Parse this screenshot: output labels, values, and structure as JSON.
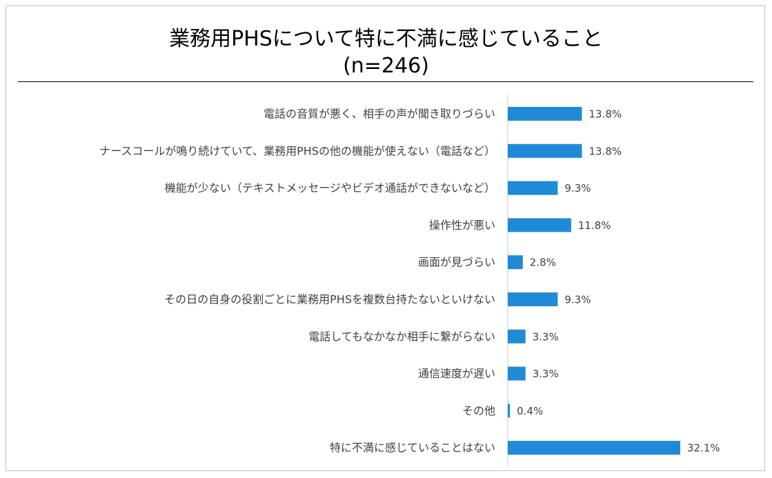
{
  "colors": {
    "bar": "#1f8bd6",
    "axis": "#c8c8c8",
    "text": "#404040"
  },
  "chart_data": {
    "type": "bar",
    "orientation": "horizontal",
    "title": "業務用PHSについて特に不満に感じていること",
    "subtitle": "(n=246)",
    "categories": [
      "電話の音質が悪く、相手の声が聞き取りづらい",
      "ナースコールが鳴り続けていて、業務用PHSの他の機能が使えない（電話など）",
      "機能が少ない（テキストメッセージやビデオ通話ができないなど）",
      "操作性が悪い",
      "画面が見づらい",
      "その日の自身の役割ごとに業務用PHSを複数台持たないといけない",
      "電話してもなかなか相手に繋がらない",
      "通信速度が遅い",
      "その他",
      "特に不満に感じていることはない"
    ],
    "values": [
      13.8,
      13.8,
      9.3,
      11.8,
      2.8,
      9.3,
      3.3,
      3.3,
      0.4,
      32.1
    ],
    "value_labels": [
      "13.8%",
      "13.8%",
      "9.3%",
      "11.8%",
      "2.8%",
      "9.3%",
      "3.3%",
      "3.3%",
      "0.4%",
      "32.1%"
    ],
    "xlim": [
      0,
      35
    ],
    "grid": false,
    "legend": "none"
  }
}
